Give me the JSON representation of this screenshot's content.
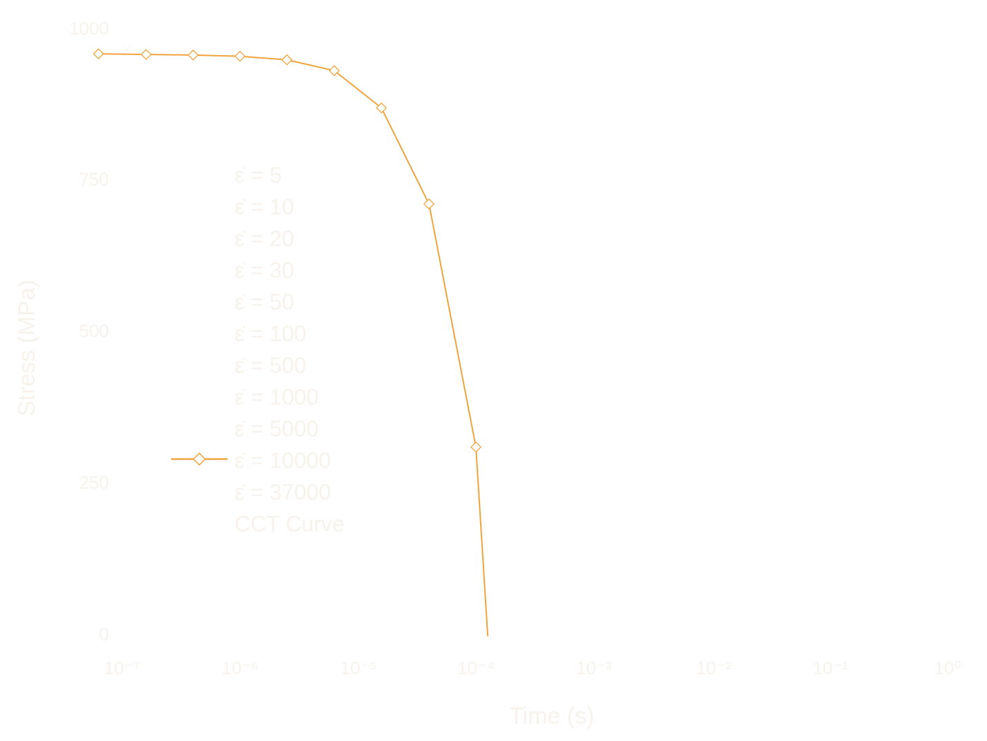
{
  "colors": {
    "series": "#f0a33c",
    "faint_text": "#f7f3ec"
  },
  "chart_data": {
    "type": "line",
    "title": "",
    "xlabel": "Time (s)",
    "ylabel": "Stress (MPa)",
    "xscale": "log",
    "xlim_exponents": [
      -7,
      0
    ],
    "x_tick_labels": [
      "10⁻⁷",
      "10⁻⁶",
      "10⁻⁵",
      "10⁻⁴",
      "10⁻³",
      "10⁻²",
      "10⁻¹",
      "10⁰"
    ],
    "ylim": [
      0,
      1000
    ],
    "y_ticks": [
      0,
      250,
      500,
      750,
      1000
    ],
    "y_tick_labels": [
      "0",
      "250",
      "500",
      "750",
      "1000"
    ],
    "grid": false,
    "legend_position": "left-center",
    "legend": [
      "ε̇ = 5",
      "ε̇ = 10",
      "ε̇ = 20",
      "ε̇ = 30",
      "ε̇ = 50",
      "ε̇ = 100",
      "ε̇ = 500",
      "ε̇ = 1000",
      "ε̇ = 5000",
      "ε̇ = 10000",
      "ε̇ = 37000",
      "CCT Curve"
    ],
    "highlighted_series_index": 9,
    "series": [
      {
        "name": "ε̇ = 10000",
        "x": [
          6.3e-08,
          1.6e-07,
          4e-07,
          1e-06,
          2.5e-06,
          6.3e-06,
          1.58e-05,
          4e-05,
          0.0001,
          0.000126
        ],
        "y": [
          970,
          969,
          968,
          966,
          960,
          942,
          880,
          720,
          315,
          0
        ]
      }
    ]
  }
}
